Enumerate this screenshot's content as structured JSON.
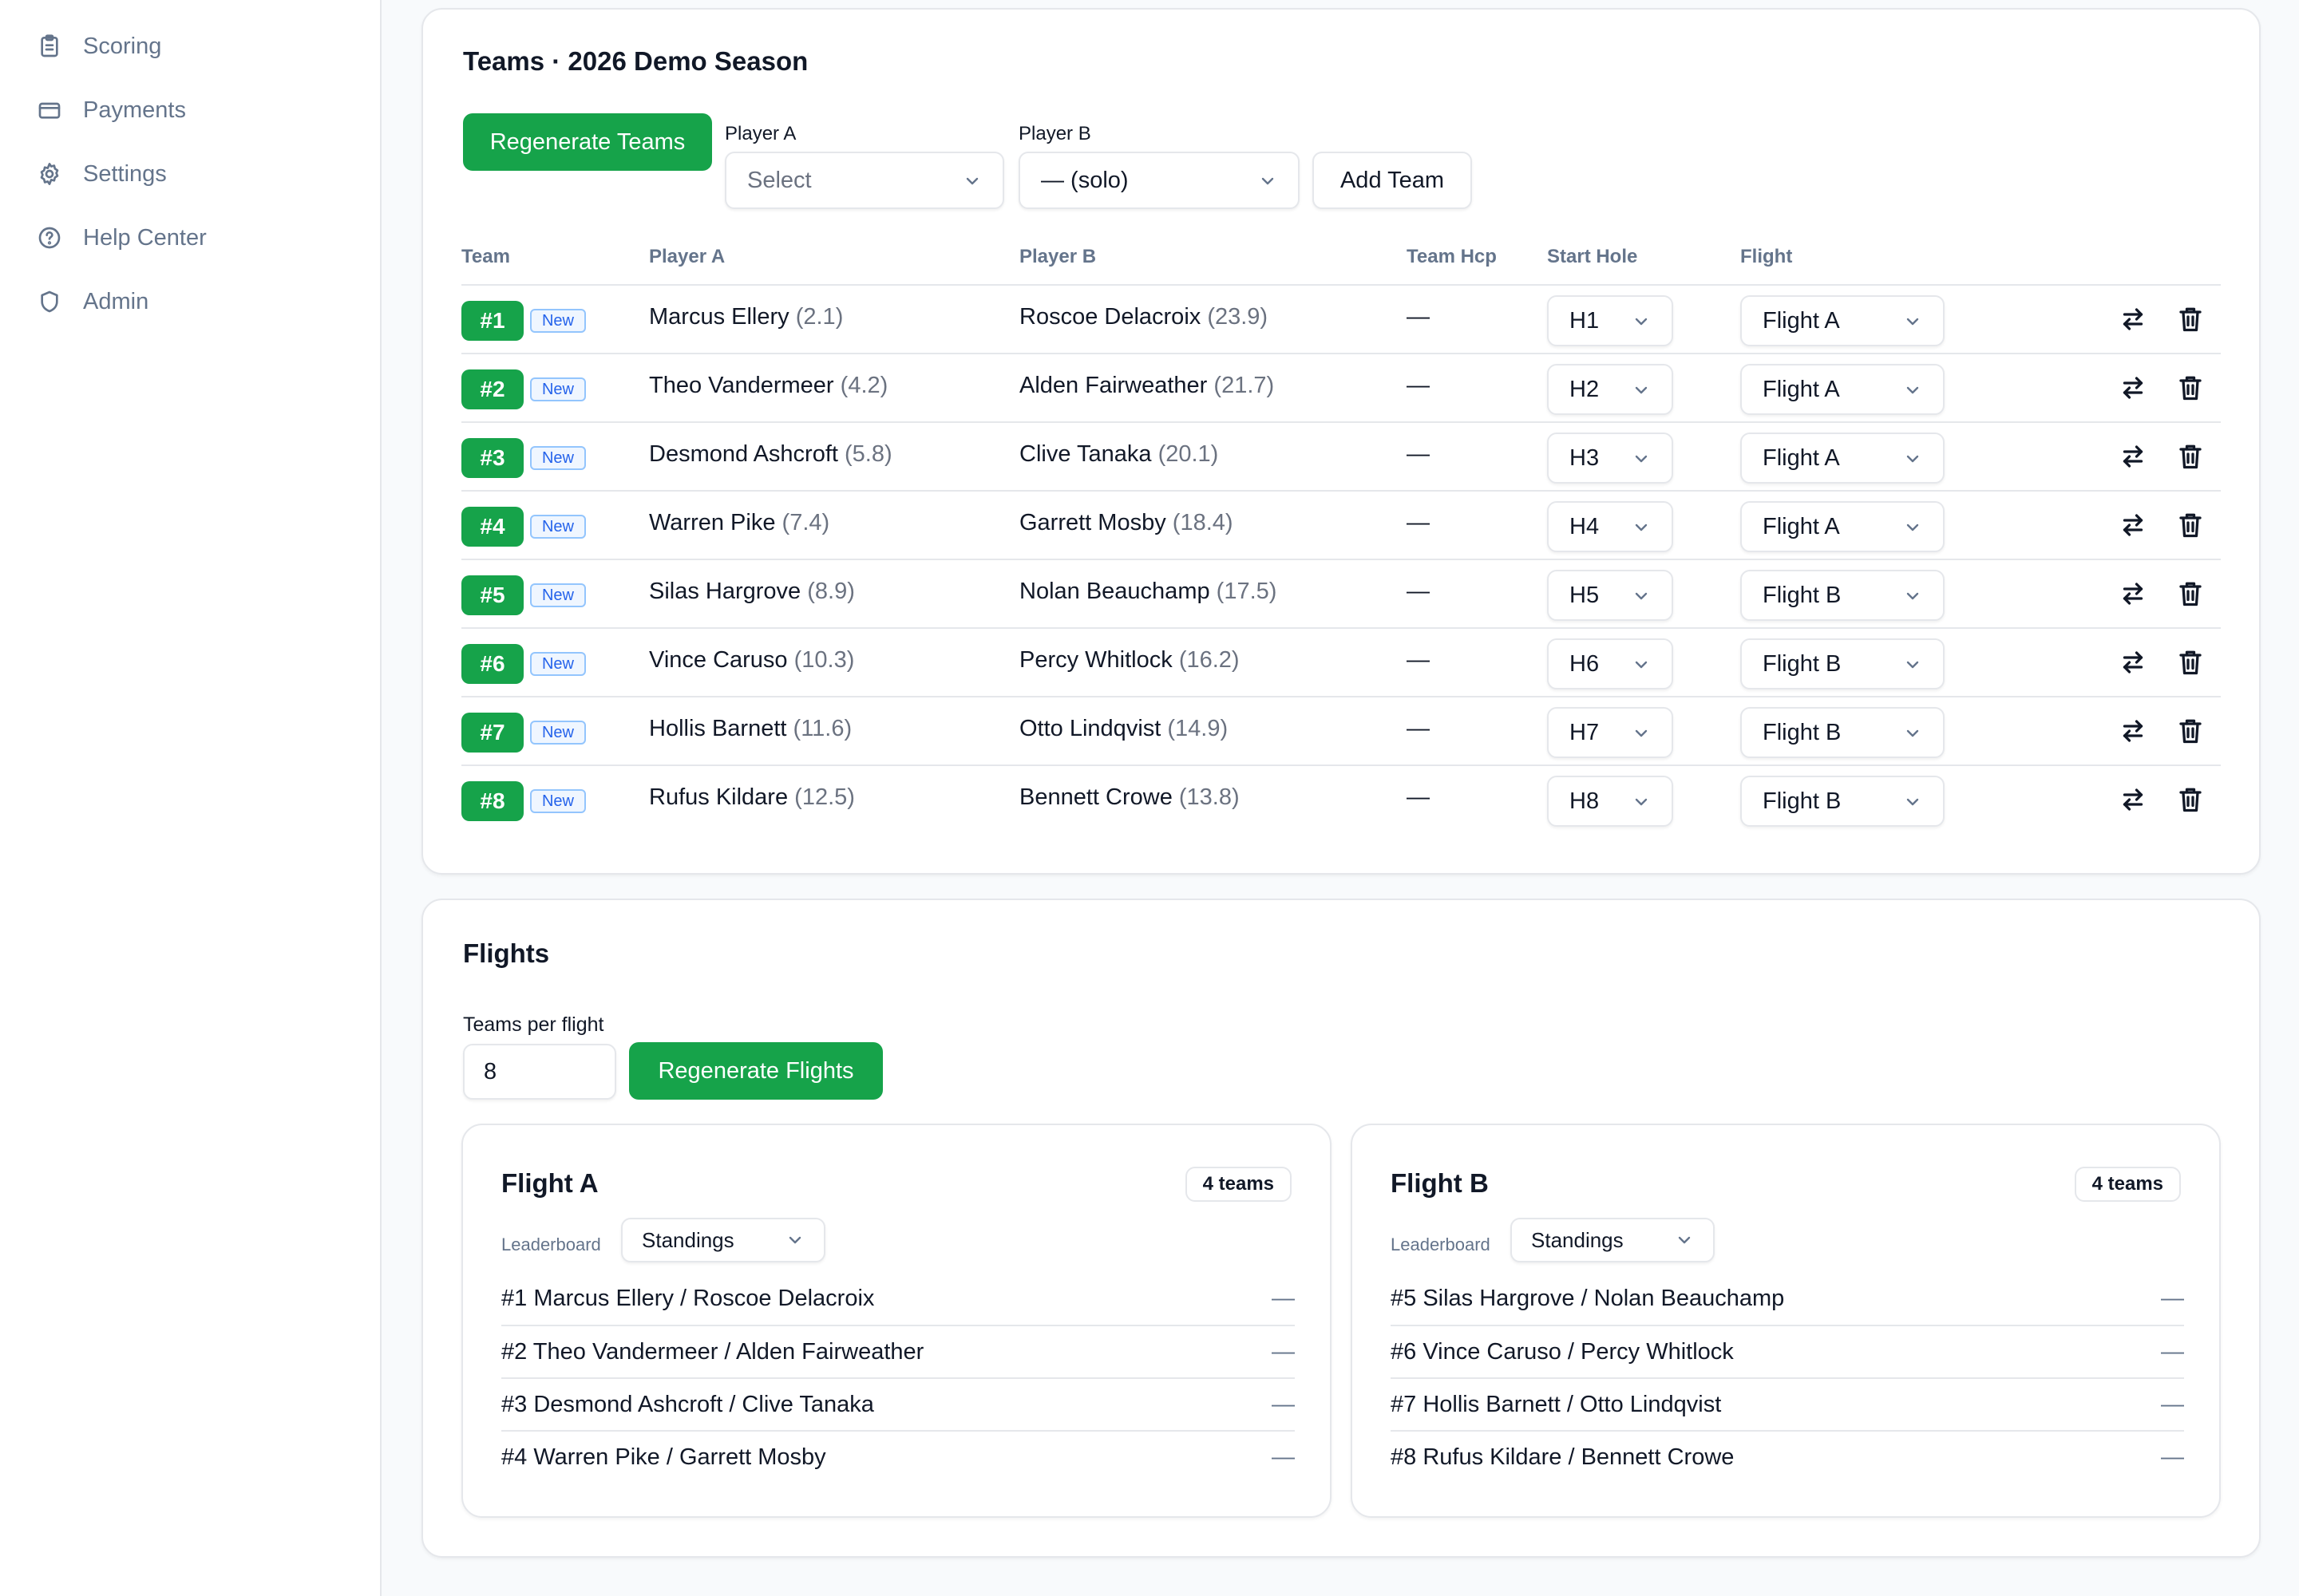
{
  "sidebar": {
    "items": [
      {
        "label": "Scoring",
        "icon": "clipboard-icon"
      },
      {
        "label": "Payments",
        "icon": "credit-card-icon"
      },
      {
        "label": "Settings",
        "icon": "gear-icon"
      },
      {
        "label": "Help Center",
        "icon": "help-circle-icon"
      },
      {
        "label": "Admin",
        "icon": "shield-icon"
      }
    ]
  },
  "teams": {
    "title": "Teams · 2026 Demo Season",
    "regenerate_label": "Regenerate Teams",
    "player_a_label": "Player A",
    "player_a_placeholder": "Select",
    "player_b_label": "Player B",
    "player_b_value": "— (solo)",
    "add_team_label": "Add Team",
    "headers": {
      "team": "Team",
      "player_a": "Player A",
      "player_b": "Player B",
      "team_hcp": "Team Hcp",
      "start_hole": "Start Hole",
      "flight": "Flight"
    },
    "rows": [
      {
        "num": "#1",
        "badge": "New",
        "a_name": "Marcus Ellery",
        "a_hcp": "(2.1)",
        "b_name": "Roscoe Delacroix",
        "b_hcp": "(23.9)",
        "team_hcp": "—",
        "hole": "H1",
        "flight": "Flight A"
      },
      {
        "num": "#2",
        "badge": "New",
        "a_name": "Theo Vandermeer",
        "a_hcp": "(4.2)",
        "b_name": "Alden Fairweather",
        "b_hcp": "(21.7)",
        "team_hcp": "—",
        "hole": "H2",
        "flight": "Flight A"
      },
      {
        "num": "#3",
        "badge": "New",
        "a_name": "Desmond Ashcroft",
        "a_hcp": "(5.8)",
        "b_name": "Clive Tanaka",
        "b_hcp": "(20.1)",
        "team_hcp": "—",
        "hole": "H3",
        "flight": "Flight A"
      },
      {
        "num": "#4",
        "badge": "New",
        "a_name": "Warren Pike",
        "a_hcp": "(7.4)",
        "b_name": "Garrett Mosby",
        "b_hcp": "(18.4)",
        "team_hcp": "—",
        "hole": "H4",
        "flight": "Flight A"
      },
      {
        "num": "#5",
        "badge": "New",
        "a_name": "Silas Hargrove",
        "a_hcp": "(8.9)",
        "b_name": "Nolan Beauchamp",
        "b_hcp": "(17.5)",
        "team_hcp": "—",
        "hole": "H5",
        "flight": "Flight B"
      },
      {
        "num": "#6",
        "badge": "New",
        "a_name": "Vince Caruso",
        "a_hcp": "(10.3)",
        "b_name": "Percy Whitlock",
        "b_hcp": "(16.2)",
        "team_hcp": "—",
        "hole": "H6",
        "flight": "Flight B"
      },
      {
        "num": "#7",
        "badge": "New",
        "a_name": "Hollis Barnett",
        "a_hcp": "(11.6)",
        "b_name": "Otto Lindqvist",
        "b_hcp": "(14.9)",
        "team_hcp": "—",
        "hole": "H7",
        "flight": "Flight B"
      },
      {
        "num": "#8",
        "badge": "New",
        "a_name": "Rufus Kildare",
        "a_hcp": "(12.5)",
        "b_name": "Bennett Crowe",
        "b_hcp": "(13.8)",
        "team_hcp": "—",
        "hole": "H8",
        "flight": "Flight B"
      }
    ]
  },
  "flights": {
    "title": "Flights",
    "teams_per_flight_label": "Teams per flight",
    "teams_per_flight_value": "8",
    "regenerate_label": "Regenerate Flights",
    "cards": [
      {
        "name": "Flight A",
        "count": "4 teams",
        "leaderboard_label": "Leaderboard",
        "leaderboard_value": "Standings",
        "lines": [
          {
            "text": "#1 Marcus Ellery / Roscoe Delacroix",
            "score": "—"
          },
          {
            "text": "#2 Theo Vandermeer / Alden Fairweather",
            "score": "—"
          },
          {
            "text": "#3 Desmond Ashcroft / Clive Tanaka",
            "score": "—"
          },
          {
            "text": "#4 Warren Pike / Garrett Mosby",
            "score": "—"
          }
        ]
      },
      {
        "name": "Flight B",
        "count": "4 teams",
        "leaderboard_label": "Leaderboard",
        "leaderboard_value": "Standings",
        "lines": [
          {
            "text": "#5 Silas Hargrove / Nolan Beauchamp",
            "score": "—"
          },
          {
            "text": "#6 Vince Caruso / Percy Whitlock",
            "score": "—"
          },
          {
            "text": "#7 Hollis Barnett / Otto Lindqvist",
            "score": "—"
          },
          {
            "text": "#8 Rufus Kildare / Bennett Crowe",
            "score": "—"
          }
        ]
      }
    ]
  },
  "colors": {
    "accent": "#16a34a",
    "badge_blue": "#2563eb",
    "muted": "#64748b"
  }
}
